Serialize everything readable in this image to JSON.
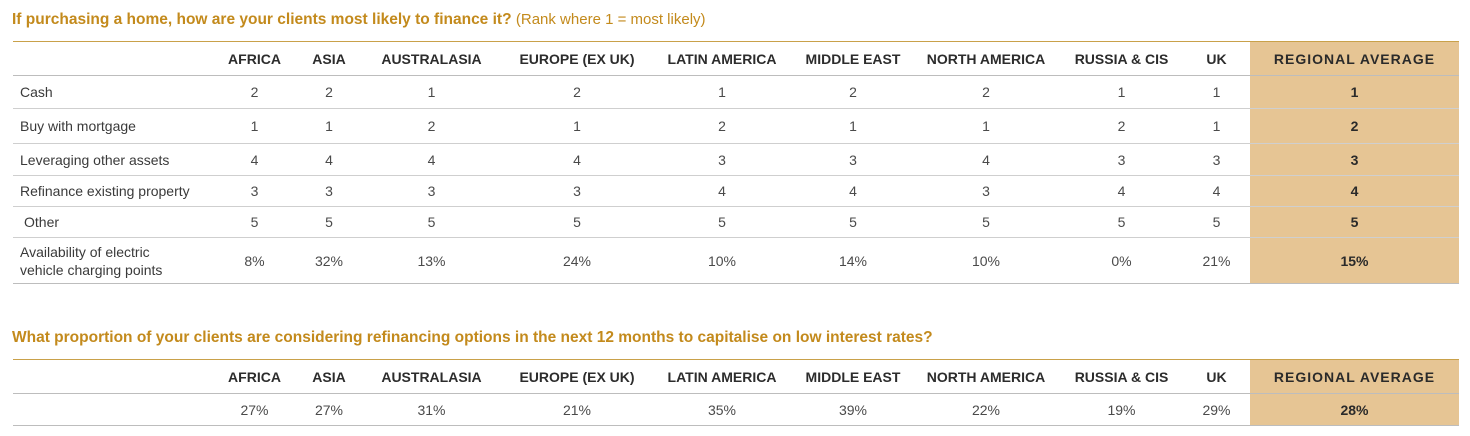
{
  "table1": {
    "title": "If purchasing a home, how are your clients most likely to finance it?",
    "subtitle": "(Rank where 1 = most likely)",
    "columns": [
      "AFRICA",
      "ASIA",
      "AUSTRALASIA",
      "EUROPE (EX UK)",
      "LATIN AMERICA",
      "MIDDLE EAST",
      "NORTH AMERICA",
      "RUSSIA & CIS",
      "UK",
      "REGIONAL AVERAGE"
    ],
    "rows": [
      {
        "label": "Cash",
        "values": [
          "2",
          "2",
          "1",
          "2",
          "1",
          "2",
          "2",
          "1",
          "1",
          "1"
        ]
      },
      {
        "label": "Buy with mortgage",
        "values": [
          "1",
          "1",
          "2",
          "1",
          "2",
          "1",
          "1",
          "2",
          "1",
          "2"
        ]
      },
      {
        "label": "Leveraging other assets",
        "values": [
          "4",
          "4",
          "4",
          "4",
          "3",
          "3",
          "4",
          "3",
          "3",
          "3"
        ]
      },
      {
        "label": "Refinance existing property",
        "values": [
          "3",
          "3",
          "3",
          "3",
          "4",
          "4",
          "3",
          "4",
          "4",
          "4"
        ]
      },
      {
        "label": "Other",
        "values": [
          "5",
          "5",
          "5",
          "5",
          "5",
          "5",
          "5",
          "5",
          "5",
          "5"
        ]
      },
      {
        "label_lines": [
          "Availability of electric",
          "vehicle charging points"
        ],
        "values": [
          "8%",
          "32%",
          "13%",
          "24%",
          "10%",
          "14%",
          "10%",
          "0%",
          "21%",
          "15%"
        ]
      }
    ]
  },
  "table2": {
    "title": "What proportion of your clients are considering refinancing options in the next 12 months to capitalise on low interest rates?",
    "columns": [
      "AFRICA",
      "ASIA",
      "AUSTRALASIA",
      "EUROPE (EX UK)",
      "LATIN AMERICA",
      "MIDDLE EAST",
      "NORTH AMERICA",
      "RUSSIA & CIS",
      "UK",
      "REGIONAL AVERAGE"
    ],
    "row": {
      "values": [
        "27%",
        "27%",
        "31%",
        "21%",
        "35%",
        "39%",
        "22%",
        "19%",
        "29%",
        "28%"
      ]
    }
  },
  "colors": {
    "title": "#c38a1c",
    "highlight": "#e6c594",
    "rule": "#c9a14a"
  }
}
